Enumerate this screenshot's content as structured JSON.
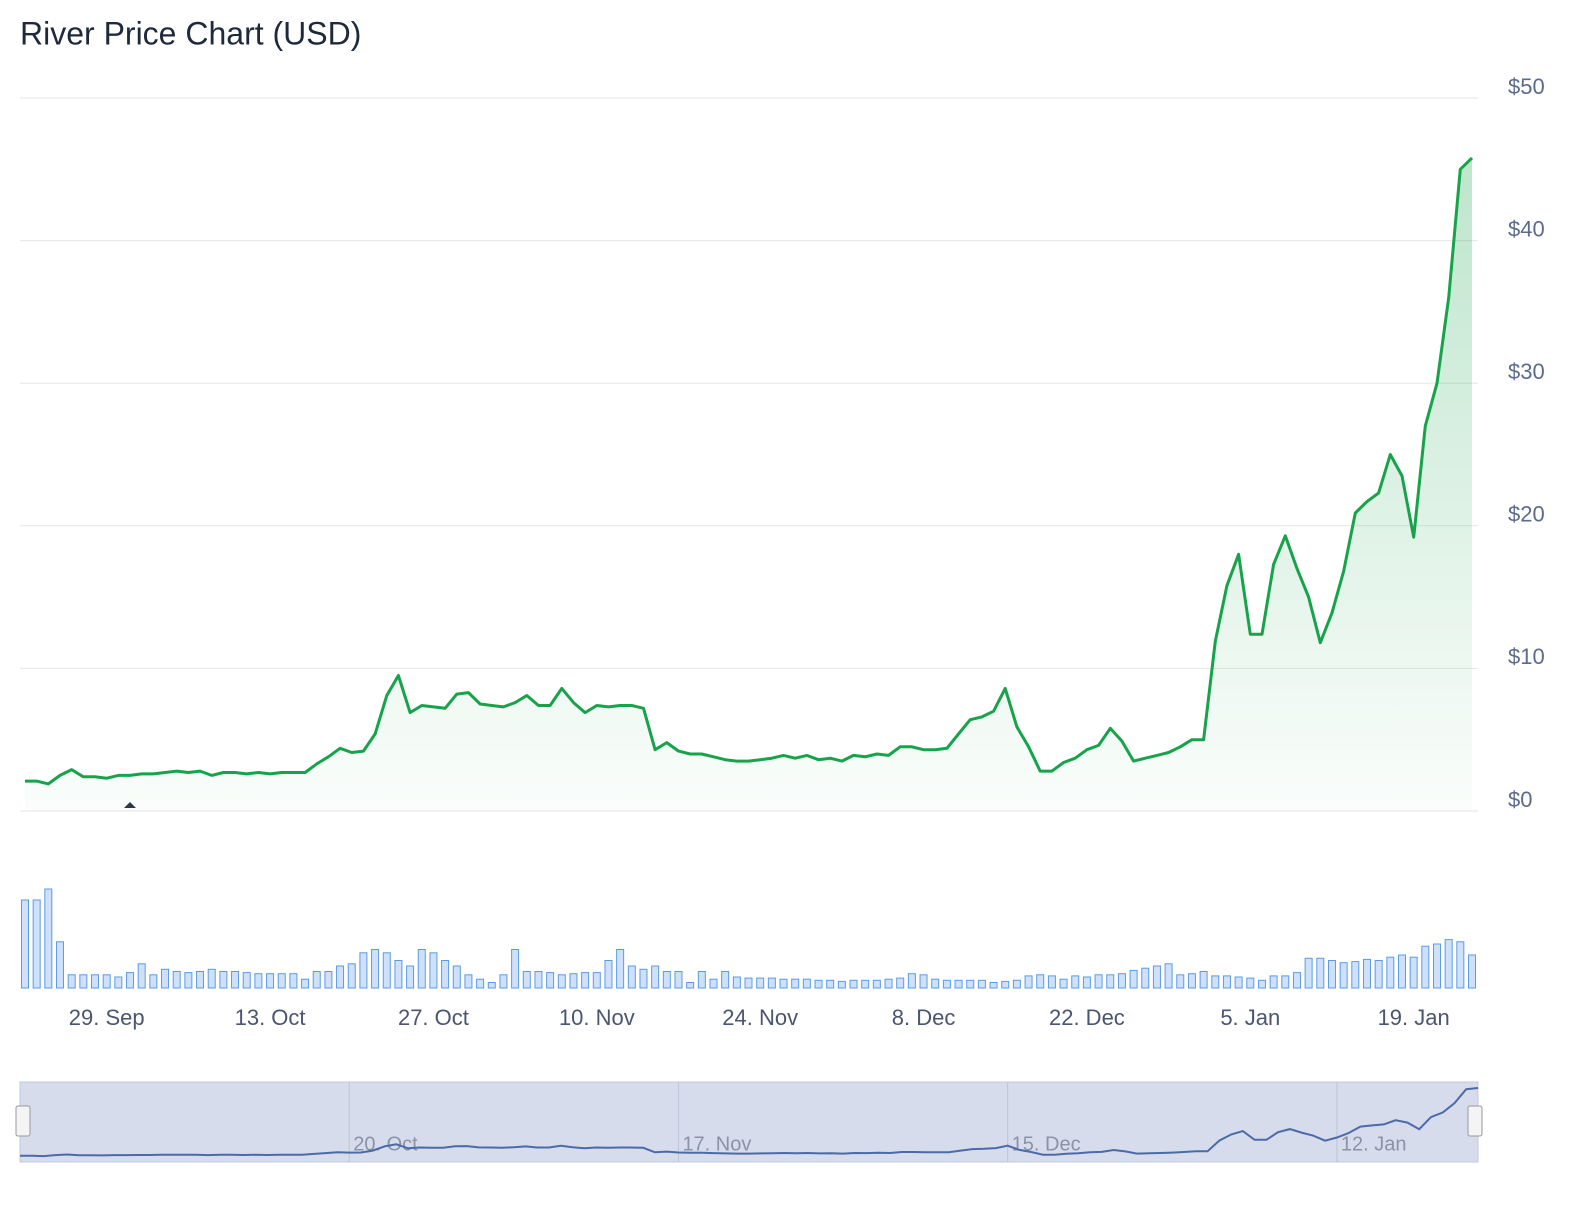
{
  "chart_data": {
    "type": "line",
    "title": "River Price Chart (USD)",
    "categories": [
      null,
      null,
      null,
      null,
      null,
      null,
      null,
      "29. Sep",
      null,
      null,
      null,
      null,
      null,
      null,
      null,
      null,
      null,
      null,
      null,
      null,
      null,
      "13. Oct",
      null,
      null,
      null,
      null,
      null,
      null,
      null,
      null,
      null,
      null,
      null,
      null,
      null,
      "27. Oct",
      null,
      null,
      null,
      null,
      null,
      null,
      null,
      null,
      null,
      null,
      null,
      null,
      null,
      "10. Nov",
      null,
      null,
      null,
      null,
      null,
      null,
      null,
      null,
      null,
      null,
      null,
      null,
      null,
      "24. Nov",
      null,
      null,
      null,
      null,
      null,
      null,
      null,
      null,
      null,
      null,
      null,
      null,
      null,
      "8. Dec",
      null,
      null,
      null,
      null,
      null,
      null,
      null,
      null,
      null,
      null,
      null,
      null,
      null,
      "22. Dec",
      null,
      null,
      null,
      null,
      null,
      null,
      null,
      null,
      null,
      null,
      null,
      null,
      null,
      "5. Jan",
      null,
      null,
      null,
      null,
      null,
      null,
      null,
      null,
      null,
      null,
      null,
      null,
      null,
      "19. Jan",
      null,
      null,
      null,
      null,
      null
    ],
    "series": [
      {
        "color": "#16a34a",
        "values": [
          2.1,
          2.1,
          1.9,
          2.5,
          2.9,
          2.4,
          2.4,
          2.3,
          2.5,
          2.5,
          2.6,
          2.6,
          2.7,
          2.8,
          2.7,
          2.8,
          2.5,
          2.7,
          2.7,
          2.6,
          2.7,
          2.6,
          2.7,
          2.7,
          2.7,
          3.3,
          3.8,
          4.4,
          4.1,
          4.2,
          5.4,
          8.1,
          9.5,
          6.9,
          7.4,
          7.3,
          7.2,
          8.2,
          8.3,
          7.5,
          7.4,
          7.3,
          7.6,
          8.1,
          7.4,
          7.4,
          8.6,
          7.6,
          6.9,
          7.4,
          7.3,
          7.4,
          7.4,
          7.2,
          4.3,
          4.8,
          4.2,
          4.0,
          4.0,
          3.8,
          3.6,
          3.5,
          3.5,
          3.6,
          3.7,
          3.9,
          3.7,
          3.9,
          3.6,
          3.7,
          3.5,
          3.9,
          3.8,
          4.0,
          3.9,
          4.5,
          4.5,
          4.3,
          4.3,
          4.4,
          5.4,
          6.4,
          6.6,
          7.0,
          8.6,
          5.9,
          4.5,
          2.8,
          2.8,
          3.4,
          3.7,
          4.3,
          4.6,
          5.8,
          4.9,
          3.5,
          3.7,
          3.9,
          4.1,
          4.5,
          5.0,
          5.0,
          11.9,
          15.8,
          18.0,
          12.4,
          12.4,
          17.3,
          19.3,
          17.0,
          15.0,
          11.8,
          13.9,
          16.8,
          20.9,
          21.7,
          22.3,
          25.0,
          23.5,
          19.2,
          27.0,
          30.0,
          36.0,
          45.0,
          45.8
        ]
      },
      {
        "type": "bar",
        "axis": "y2",
        "color": "#5b9be6",
        "values": [
          80,
          80,
          90,
          42,
          12,
          12,
          12,
          12,
          10,
          14,
          22,
          12,
          17,
          15,
          14,
          15,
          17,
          15,
          15,
          14,
          13,
          13,
          13,
          13,
          8,
          15,
          15,
          20,
          22,
          32,
          35,
          32,
          25,
          20,
          35,
          32,
          25,
          20,
          12,
          8,
          5,
          12,
          35,
          15,
          15,
          14,
          12,
          13,
          14,
          14,
          25,
          35,
          20,
          17,
          20,
          15,
          15,
          5,
          15,
          8,
          15,
          10,
          9,
          9,
          9,
          8,
          8,
          8,
          7,
          7,
          6,
          7,
          7,
          7,
          8,
          9,
          13,
          12,
          8,
          7,
          7,
          7,
          7,
          5,
          6,
          7,
          11,
          12,
          11,
          8,
          11,
          10,
          12,
          12,
          13,
          16,
          18,
          20,
          22,
          12,
          13,
          15,
          11,
          11,
          10,
          9,
          7,
          11,
          11,
          14,
          27,
          27,
          25,
          23,
          24,
          26,
          25,
          28,
          30,
          28,
          38,
          40,
          44,
          42,
          30
        ]
      }
    ],
    "ylim": [
      0,
      50
    ],
    "yticks": [
      {
        "value": 0,
        "label": "$0"
      },
      {
        "value": 10,
        "label": "$10"
      },
      {
        "value": 20,
        "label": "$20"
      },
      {
        "value": 30,
        "label": "$30"
      },
      {
        "value": 40,
        "label": "$40"
      },
      {
        "value": 50,
        "label": "$50"
      }
    ],
    "y2lim": [
      0,
      100
    ],
    "grid": true,
    "navigator": {
      "categories": [
        null,
        null,
        null,
        null,
        null,
        null,
        null,
        null,
        null,
        null,
        null,
        null,
        null,
        null,
        null,
        null,
        null,
        null,
        null,
        null,
        null,
        null,
        null,
        null,
        null,
        null,
        null,
        null,
        "20. Oct",
        null,
        null,
        null,
        null,
        null,
        null,
        null,
        null,
        null,
        null,
        null,
        null,
        null,
        null,
        null,
        null,
        null,
        null,
        null,
        null,
        null,
        null,
        null,
        null,
        null,
        null,
        null,
        "17. Nov",
        null,
        null,
        null,
        null,
        null,
        null,
        null,
        null,
        null,
        null,
        null,
        null,
        null,
        null,
        null,
        null,
        null,
        null,
        null,
        null,
        null,
        null,
        null,
        null,
        null,
        null,
        null,
        "15. Dec",
        null,
        null,
        null,
        null,
        null,
        null,
        null,
        null,
        null,
        null,
        null,
        null,
        null,
        null,
        null,
        null,
        null,
        null,
        null,
        null,
        null,
        null,
        null,
        null,
        null,
        null,
        null,
        "12. Jan",
        null,
        null,
        null,
        null,
        null,
        null,
        null,
        null,
        null,
        null,
        null,
        null
      ]
    }
  }
}
